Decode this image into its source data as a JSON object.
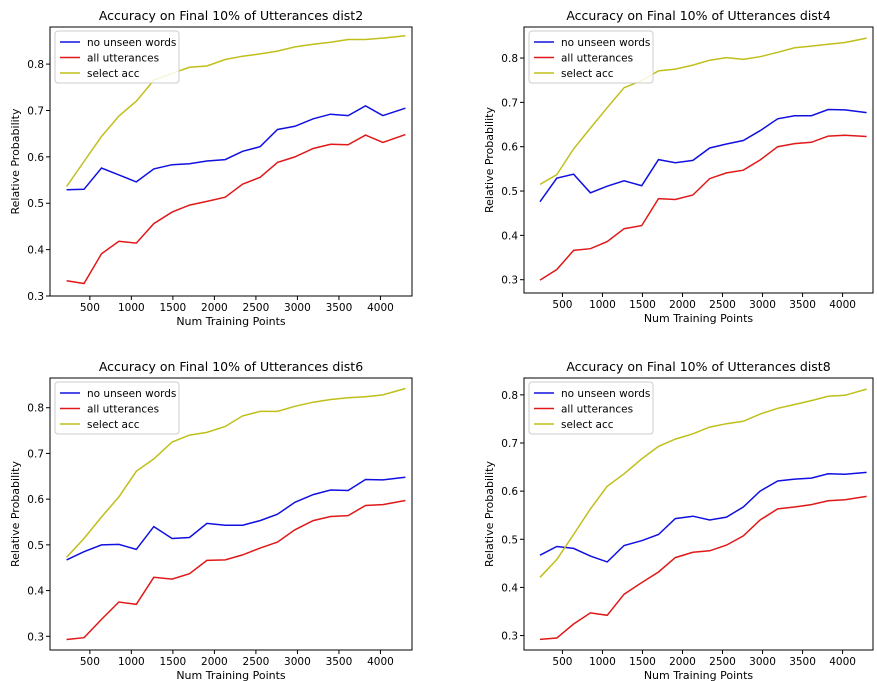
{
  "chart_data": [
    {
      "type": "line",
      "title": "Accuracy on Final 10% of Utterances dist2",
      "xlabel": "Num Training Points",
      "ylabel": "Relative Probability",
      "xlim": [
        20,
        4380
      ],
      "ylim": [
        0.3,
        0.88
      ],
      "xticks": [
        500,
        1000,
        1500,
        2000,
        2500,
        3000,
        3500,
        4000
      ],
      "yticks": [
        0.3,
        0.4,
        0.5,
        0.6,
        0.7,
        0.8
      ],
      "legend": "upper-left",
      "x": [
        220,
        430,
        640,
        850,
        1060,
        1270,
        1490,
        1700,
        1910,
        2130,
        2340,
        2550,
        2760,
        2970,
        3190,
        3400,
        3610,
        3820,
        4030,
        4300
      ],
      "series": [
        {
          "name": "no unseen words",
          "color": "#1010e0",
          "values": [
            0.529,
            0.53,
            0.576,
            0.561,
            0.546,
            0.574,
            0.583,
            0.585,
            0.591,
            0.594,
            0.612,
            0.622,
            0.659,
            0.666,
            0.682,
            0.692,
            0.689,
            0.71,
            0.689,
            0.705
          ]
        },
        {
          "name": "all utterances",
          "color": "#e01818",
          "values": [
            0.333,
            0.327,
            0.391,
            0.418,
            0.414,
            0.456,
            0.481,
            0.496,
            0.504,
            0.513,
            0.541,
            0.556,
            0.588,
            0.6,
            0.618,
            0.627,
            0.626,
            0.647,
            0.631,
            0.648
          ]
        },
        {
          "name": "select acc",
          "color": "#bfbf1a",
          "values": [
            0.536,
            0.59,
            0.644,
            0.688,
            0.72,
            0.765,
            0.78,
            0.793,
            0.796,
            0.81,
            0.817,
            0.822,
            0.828,
            0.837,
            0.843,
            0.847,
            0.853,
            0.853,
            0.856,
            0.861
          ]
        }
      ]
    },
    {
      "type": "line",
      "title": "Accuracy on Final 10% of Utterances dist4",
      "xlabel": "Num Training Points",
      "ylabel": "Relative Probability",
      "xlim": [
        20,
        4380
      ],
      "ylim": [
        0.27,
        0.87
      ],
      "xticks": [
        500,
        1000,
        1500,
        2000,
        2500,
        3000,
        3500,
        4000
      ],
      "yticks": [
        0.3,
        0.4,
        0.5,
        0.6,
        0.7,
        0.8
      ],
      "legend": "upper-left",
      "x": [
        220,
        430,
        640,
        850,
        1060,
        1270,
        1490,
        1700,
        1910,
        2130,
        2340,
        2550,
        2760,
        2970,
        3190,
        3400,
        3610,
        3820,
        4030,
        4300
      ],
      "series": [
        {
          "name": "no unseen words",
          "color": "#1010e0",
          "values": [
            0.476,
            0.529,
            0.538,
            0.496,
            0.511,
            0.523,
            0.512,
            0.571,
            0.564,
            0.569,
            0.597,
            0.606,
            0.614,
            0.636,
            0.663,
            0.67,
            0.67,
            0.684,
            0.683,
            0.677
          ]
        },
        {
          "name": "all utterances",
          "color": "#e01818",
          "values": [
            0.299,
            0.323,
            0.366,
            0.37,
            0.386,
            0.415,
            0.422,
            0.483,
            0.481,
            0.491,
            0.528,
            0.541,
            0.547,
            0.57,
            0.6,
            0.607,
            0.61,
            0.624,
            0.626,
            0.623
          ]
        },
        {
          "name": "select acc",
          "color": "#bfbf1a",
          "values": [
            0.515,
            0.537,
            0.595,
            0.642,
            0.688,
            0.733,
            0.749,
            0.771,
            0.775,
            0.784,
            0.795,
            0.801,
            0.797,
            0.803,
            0.813,
            0.823,
            0.827,
            0.831,
            0.835,
            0.845
          ]
        }
      ]
    },
    {
      "type": "line",
      "title": "Accuracy on Final 10% of Utterances dist6",
      "xlabel": "Num Training Points",
      "ylabel": "Relative Probability",
      "xlim": [
        20,
        4380
      ],
      "ylim": [
        0.27,
        0.865
      ],
      "xticks": [
        500,
        1000,
        1500,
        2000,
        2500,
        3000,
        3500,
        4000
      ],
      "yticks": [
        0.3,
        0.4,
        0.5,
        0.6,
        0.7,
        0.8
      ],
      "legend": "upper-left",
      "x": [
        220,
        430,
        640,
        850,
        1060,
        1270,
        1490,
        1700,
        1910,
        2130,
        2340,
        2550,
        2760,
        2970,
        3190,
        3400,
        3610,
        3820,
        4030,
        4300
      ],
      "series": [
        {
          "name": "no unseen words",
          "color": "#1010e0",
          "values": [
            0.467,
            0.485,
            0.5,
            0.501,
            0.49,
            0.54,
            0.514,
            0.516,
            0.547,
            0.543,
            0.543,
            0.553,
            0.567,
            0.593,
            0.61,
            0.62,
            0.619,
            0.643,
            0.642,
            0.648
          ]
        },
        {
          "name": "all utterances",
          "color": "#e01818",
          "values": [
            0.293,
            0.297,
            0.337,
            0.375,
            0.37,
            0.429,
            0.425,
            0.437,
            0.466,
            0.467,
            0.478,
            0.493,
            0.506,
            0.533,
            0.553,
            0.562,
            0.564,
            0.586,
            0.588,
            0.597
          ]
        },
        {
          "name": "select acc",
          "color": "#bfbf1a",
          "values": [
            0.473,
            0.514,
            0.561,
            0.605,
            0.661,
            0.688,
            0.725,
            0.74,
            0.746,
            0.759,
            0.782,
            0.792,
            0.792,
            0.803,
            0.812,
            0.818,
            0.822,
            0.824,
            0.828,
            0.842
          ]
        }
      ]
    },
    {
      "type": "line",
      "title": "Accuracy on Final 10% of Utterances dist8",
      "xlabel": "Num Training Points",
      "ylabel": "Relative Probability",
      "xlim": [
        20,
        4380
      ],
      "ylim": [
        0.27,
        0.835
      ],
      "xticks": [
        500,
        1000,
        1500,
        2000,
        2500,
        3000,
        3500,
        4000
      ],
      "yticks": [
        0.3,
        0.4,
        0.5,
        0.6,
        0.7,
        0.8
      ],
      "legend": "upper-left",
      "x": [
        220,
        430,
        640,
        850,
        1060,
        1270,
        1490,
        1700,
        1910,
        2130,
        2340,
        2550,
        2760,
        2970,
        3190,
        3400,
        3610,
        3820,
        4030,
        4300
      ],
      "series": [
        {
          "name": "no unseen words",
          "color": "#1010e0",
          "values": [
            0.467,
            0.485,
            0.481,
            0.465,
            0.453,
            0.487,
            0.497,
            0.51,
            0.543,
            0.548,
            0.54,
            0.546,
            0.567,
            0.6,
            0.621,
            0.625,
            0.627,
            0.636,
            0.635,
            0.639
          ]
        },
        {
          "name": "all utterances",
          "color": "#e01818",
          "values": [
            0.292,
            0.295,
            0.324,
            0.347,
            0.342,
            0.386,
            0.41,
            0.432,
            0.462,
            0.473,
            0.476,
            0.488,
            0.507,
            0.54,
            0.563,
            0.567,
            0.572,
            0.58,
            0.582,
            0.589
          ]
        },
        {
          "name": "select acc",
          "color": "#bfbf1a",
          "values": [
            0.421,
            0.458,
            0.51,
            0.563,
            0.61,
            0.636,
            0.667,
            0.693,
            0.708,
            0.719,
            0.733,
            0.74,
            0.745,
            0.76,
            0.772,
            0.78,
            0.788,
            0.797,
            0.799,
            0.812
          ]
        }
      ]
    }
  ]
}
